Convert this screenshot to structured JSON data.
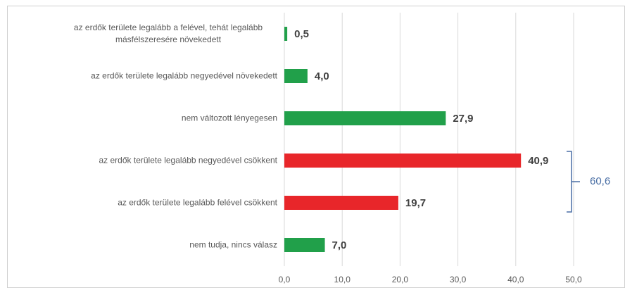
{
  "chart_data": {
    "type": "bar",
    "orientation": "horizontal",
    "categories": [
      "az erdők területe legalább a felével, tehát legalább másfélszeresére növekedett",
      "az erdők területe legalább negyedével növekedett",
      "nem változott lényegesen",
      "az erdők területe legalább negyedével csökkent",
      "az erdők területe legalább felével csökkent",
      "nem tudja, nincs válasz"
    ],
    "values": [
      0.5,
      4.0,
      27.9,
      40.9,
      19.7,
      7.0
    ],
    "value_labels": [
      "0,5",
      "4,0",
      "27,9",
      "40,9",
      "19,7",
      "7,0"
    ],
    "colors": [
      "#21a04a",
      "#21a04a",
      "#21a04a",
      "#e8262a",
      "#e8262a",
      "#21a04a"
    ],
    "xlim": [
      0,
      50
    ],
    "xticks": [
      {
        "value": 0,
        "label": "0,0"
      },
      {
        "value": 10,
        "label": "10,0"
      },
      {
        "value": 20,
        "label": "20,0"
      },
      {
        "value": 30,
        "label": "30,0"
      },
      {
        "value": 40,
        "label": "40,0"
      },
      {
        "value": 50,
        "label": "50,0"
      }
    ],
    "grid": true,
    "bracket_label": "60,6"
  }
}
